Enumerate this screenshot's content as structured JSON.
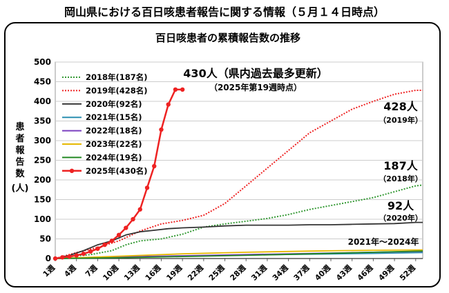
{
  "page": {
    "title": "岡山県における百日咳患者報告に関する情報（５月１４日時点）"
  },
  "chart_data": {
    "type": "line",
    "title": "百日咳患者の累積報告数の推移",
    "ylabel": "患者報告数",
    "ylabel_unit": "(人)",
    "ylim": [
      0,
      500
    ],
    "yticks": [
      0,
      50,
      100,
      150,
      200,
      250,
      300,
      350,
      400,
      450,
      500
    ],
    "xlim": [
      1,
      53
    ],
    "xticks": [
      "1週",
      "4週",
      "7週",
      "10週",
      "13週",
      "16週",
      "19週",
      "22週",
      "25週",
      "28週",
      "31週",
      "34週",
      "37週",
      "40週",
      "43週",
      "46週",
      "49週",
      "52週"
    ],
    "grid": true,
    "legend_position": "top-left",
    "series": [
      {
        "name": "2018年(187名)",
        "color": "#339933",
        "style": "dotted",
        "markers": false,
        "x": [
          1,
          3,
          6,
          9,
          11,
          13,
          16,
          19,
          22,
          25,
          28,
          31,
          34,
          37,
          40,
          43,
          46,
          49,
          52,
          53
        ],
        "y": [
          0,
          5,
          10,
          20,
          35,
          45,
          50,
          62,
          80,
          88,
          95,
          102,
          112,
          125,
          135,
          145,
          155,
          170,
          185,
          187
        ]
      },
      {
        "name": "2019年(428名)",
        "color": "#ee2222",
        "style": "dotted",
        "markers": false,
        "x": [
          1,
          4,
          7,
          10,
          13,
          16,
          19,
          22,
          25,
          28,
          31,
          34,
          37,
          40,
          43,
          46,
          49,
          52,
          53
        ],
        "y": [
          0,
          15,
          28,
          45,
          70,
          88,
          97,
          110,
          140,
          185,
          230,
          275,
          320,
          350,
          380,
          400,
          418,
          428,
          428
        ]
      },
      {
        "name": "2020年(92名)",
        "color": "#333333",
        "style": "solid",
        "markers": false,
        "x": [
          1,
          3,
          5,
          7,
          9,
          11,
          13,
          15,
          17,
          19,
          22,
          25,
          28,
          31,
          34,
          37,
          40,
          43,
          46,
          49,
          52,
          53
        ],
        "y": [
          0,
          8,
          20,
          35,
          45,
          60,
          68,
          72,
          76,
          78,
          80,
          83,
          85,
          85,
          85,
          86,
          86,
          87,
          88,
          89,
          92,
          92
        ]
      },
      {
        "name": "2021年(15名)",
        "color": "#2a8fb0",
        "style": "solid",
        "markers": false,
        "x": [
          1,
          10,
          19,
          28,
          37,
          46,
          53
        ],
        "y": [
          0,
          3,
          6,
          9,
          11,
          13,
          15
        ]
      },
      {
        "name": "2022年(18名)",
        "color": "#7a3fbf",
        "style": "solid",
        "markers": false,
        "x": [
          1,
          10,
          19,
          28,
          37,
          46,
          53
        ],
        "y": [
          0,
          4,
          7,
          10,
          13,
          16,
          18
        ]
      },
      {
        "name": "2023年(22名)",
        "color": "#e6b800",
        "style": "solid",
        "markers": false,
        "x": [
          1,
          10,
          19,
          28,
          37,
          46,
          53
        ],
        "y": [
          0,
          6,
          12,
          16,
          19,
          21,
          22
        ]
      },
      {
        "name": "2024年(19名)",
        "color": "#228822",
        "style": "solid",
        "markers": false,
        "x": [
          1,
          10,
          19,
          28,
          37,
          46,
          53
        ],
        "y": [
          0,
          2,
          5,
          8,
          12,
          16,
          19
        ]
      },
      {
        "name": "2025年(430名)",
        "color": "#ee2222",
        "style": "solid",
        "markers": true,
        "x": [
          1,
          2,
          3,
          4,
          5,
          6,
          7,
          8,
          9,
          10,
          11,
          12,
          13,
          14,
          15,
          16,
          17,
          18,
          19
        ],
        "y": [
          0,
          3,
          5,
          8,
          12,
          18,
          25,
          35,
          45,
          60,
          78,
          100,
          125,
          180,
          235,
          328,
          392,
          430,
          430
        ]
      }
    ],
    "annotations": [
      {
        "text": "430人（県内過去最多更新）",
        "sub": "（2025年第19週時点）"
      },
      {
        "text": "428人",
        "sub": "（2019年）"
      },
      {
        "text": "187人",
        "sub": "（2018年）"
      },
      {
        "text": "92人",
        "sub": "（2020年）"
      },
      {
        "text": "2021年～2024年",
        "sub": ""
      }
    ]
  }
}
